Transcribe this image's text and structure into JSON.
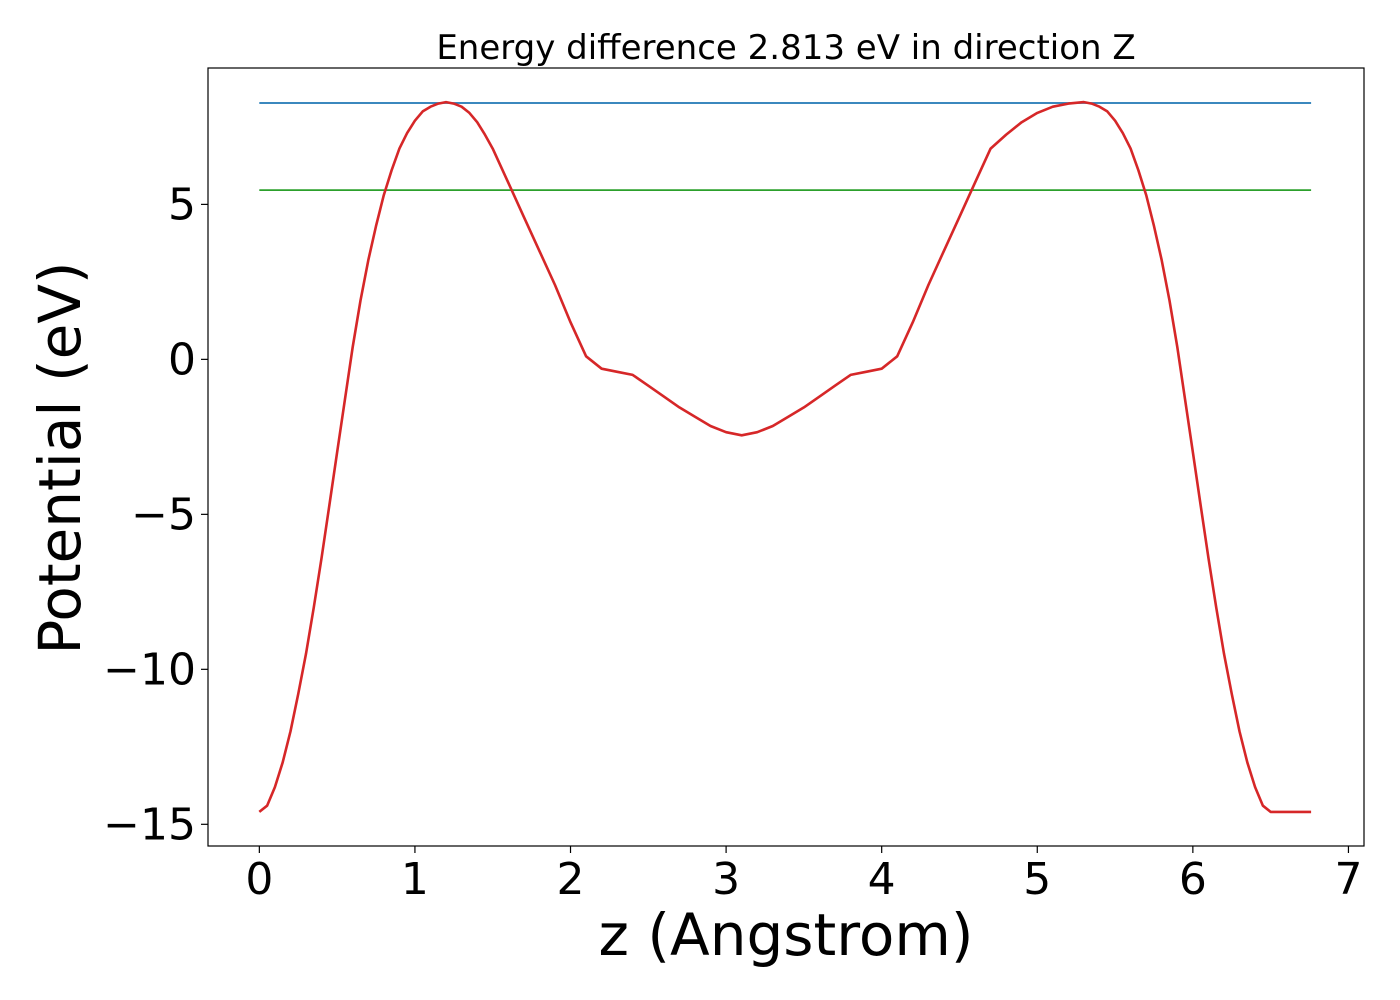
{
  "chart_data": {
    "type": "line",
    "title": "Energy difference 2.813 eV in direction Z",
    "xlabel": "z (Angstrom)",
    "ylabel": "Potential (eV)",
    "xlim": [
      -0.33,
      7.1
    ],
    "ylim": [
      -15.7,
      9.4
    ],
    "xticks": [
      0,
      1,
      2,
      3,
      4,
      5,
      6,
      7
    ],
    "xtick_labels": [
      "0",
      "1",
      "2",
      "3",
      "4",
      "5",
      "6",
      "7"
    ],
    "yticks": [
      5,
      0,
      -5,
      -10,
      -15
    ],
    "ytick_labels": [
      "5",
      "0",
      "−5",
      "−10",
      "−15"
    ],
    "grid": false,
    "legend": "none",
    "series": [
      {
        "color": "#d62728",
        "x": [
          0.0,
          0.05,
          0.1,
          0.15,
          0.2,
          0.25,
          0.3,
          0.35,
          0.4,
          0.45,
          0.5,
          0.55,
          0.6,
          0.65,
          0.7,
          0.75,
          0.8,
          0.85,
          0.9,
          0.95,
          1.0,
          1.05,
          1.1,
          1.15,
          1.2,
          1.25,
          1.3,
          1.35,
          1.4,
          1.45,
          1.5,
          1.6,
          1.7,
          1.8,
          1.9,
          2.0,
          2.1,
          2.2,
          2.3,
          2.4,
          2.5,
          2.6,
          2.7,
          2.8,
          2.9,
          3.0,
          3.1,
          3.2,
          3.3,
          3.4,
          3.5,
          3.6,
          3.7,
          3.8,
          3.9,
          4.0,
          4.1,
          4.2,
          4.3,
          4.4,
          4.5,
          4.6,
          4.7,
          4.8,
          4.9,
          5.0,
          5.1,
          5.2,
          5.3,
          5.35,
          5.4,
          5.45,
          5.5,
          5.55,
          5.6,
          5.65,
          5.7,
          5.75,
          5.8,
          5.85,
          5.9,
          5.95,
          6.0,
          6.05,
          6.1,
          6.15,
          6.2,
          6.25,
          6.3,
          6.35,
          6.4,
          6.45,
          6.5,
          6.55,
          6.6,
          6.65,
          6.7,
          6.76
        ],
        "y": [
          -14.6,
          -14.4,
          -13.8,
          -13.0,
          -12.0,
          -10.8,
          -9.5,
          -8.0,
          -6.4,
          -4.7,
          -3.0,
          -1.3,
          0.4,
          1.9,
          3.2,
          4.3,
          5.3,
          6.1,
          6.8,
          7.3,
          7.7,
          8.0,
          8.15,
          8.25,
          8.3,
          8.25,
          8.15,
          7.95,
          7.65,
          7.25,
          6.8,
          5.7,
          4.6,
          3.5,
          2.4,
          1.2,
          0.1,
          -0.3,
          -0.4,
          -0.5,
          -0.85,
          -1.2,
          -1.55,
          -1.85,
          -2.15,
          -2.35,
          -2.45,
          -2.35,
          -2.15,
          -1.85,
          -1.55,
          -1.2,
          -0.85,
          -0.5,
          -0.4,
          -0.3,
          0.1,
          1.2,
          2.4,
          3.5,
          4.6,
          5.7,
          6.8,
          7.25,
          7.65,
          7.95,
          8.15,
          8.25,
          8.3,
          8.25,
          8.15,
          8.0,
          7.7,
          7.3,
          6.8,
          6.1,
          5.3,
          4.3,
          3.2,
          1.9,
          0.4,
          -1.3,
          -3.0,
          -4.7,
          -6.4,
          -8.0,
          -9.5,
          -10.8,
          -12.0,
          -13.0,
          -13.8,
          -14.4,
          -14.6,
          -14.6,
          -14.6,
          -14.6,
          -14.6,
          -14.6
        ]
      },
      {
        "color": "#1f77b4",
        "x": [
          0.0,
          6.76
        ],
        "y": [
          8.27,
          8.27
        ]
      },
      {
        "color": "#2ca02c",
        "x": [
          0.0,
          6.76
        ],
        "y": [
          5.46,
          5.46
        ]
      }
    ]
  }
}
